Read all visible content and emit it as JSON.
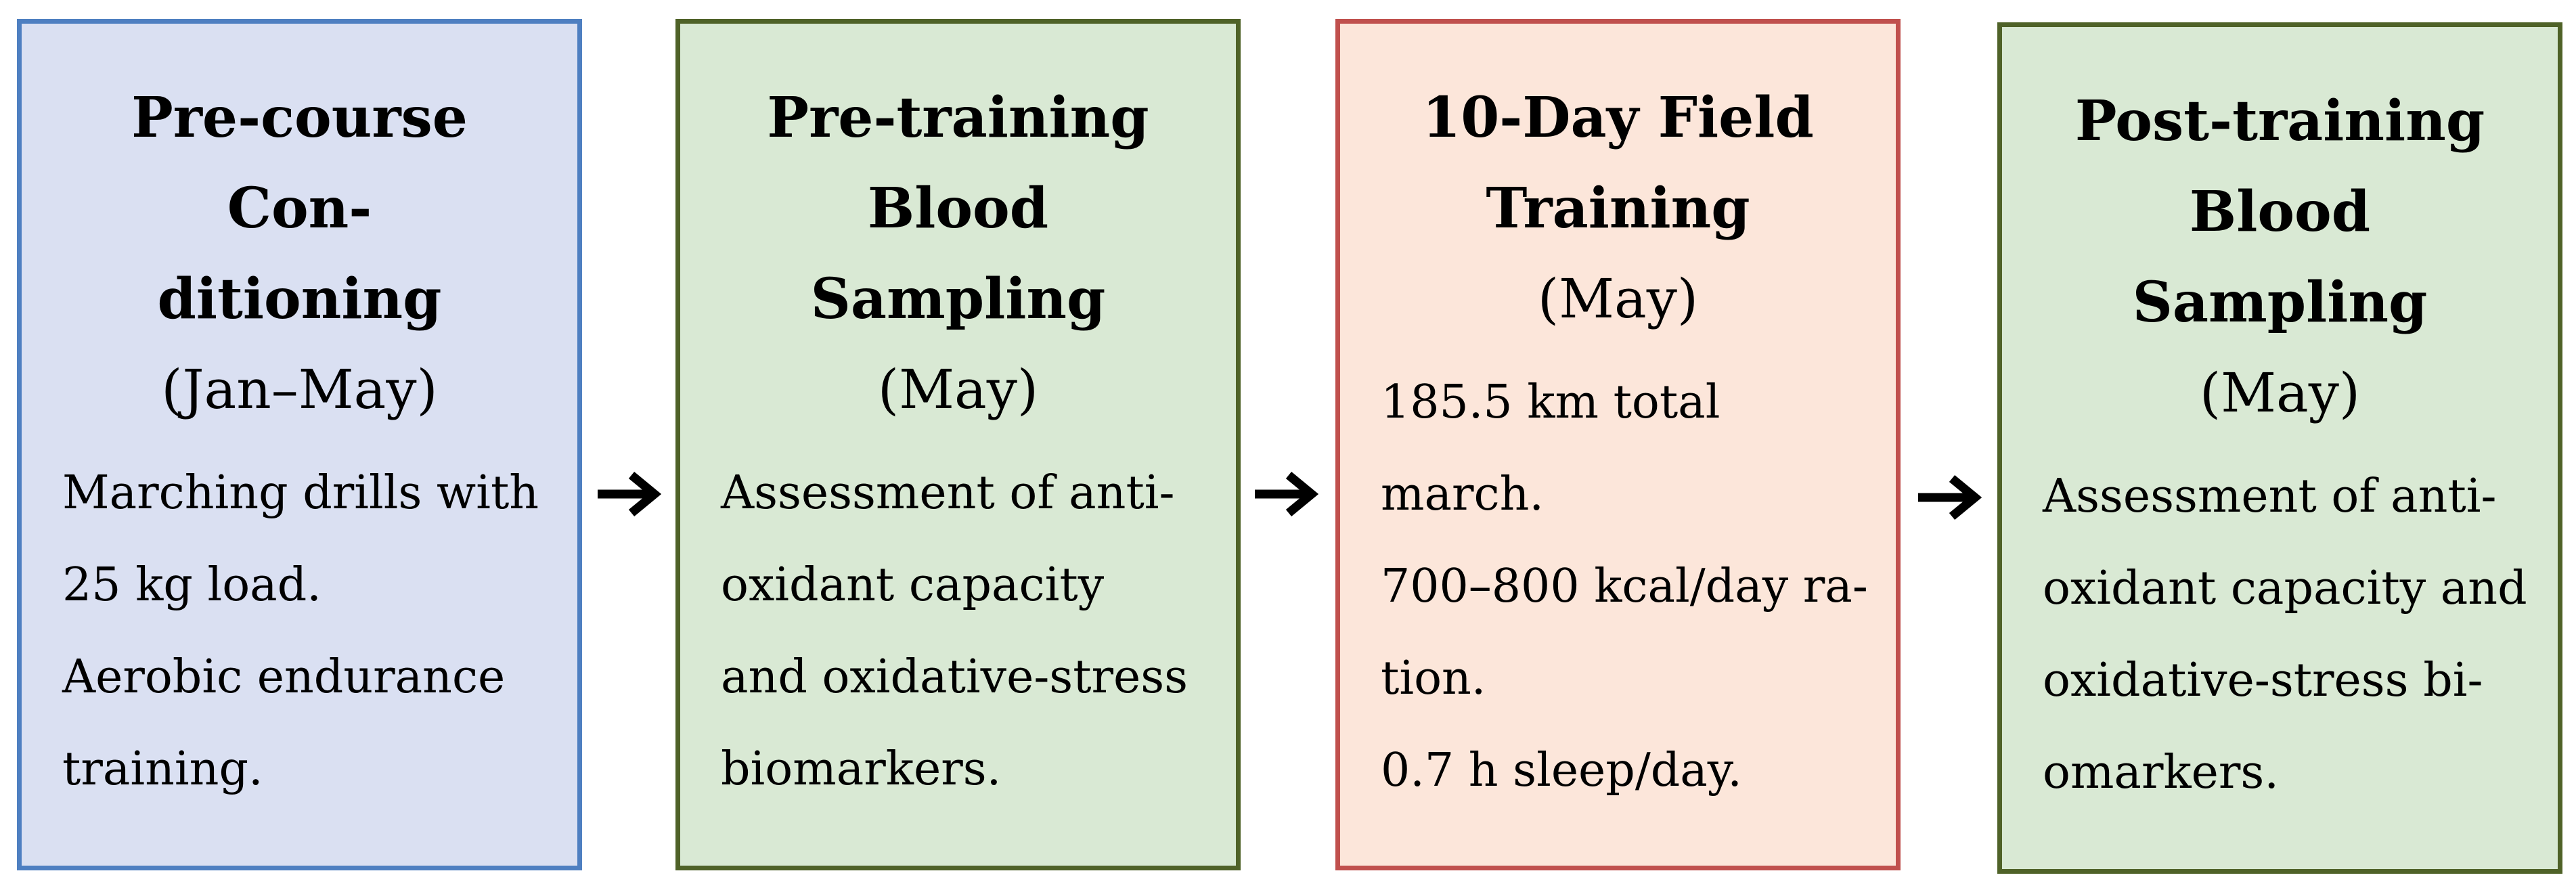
{
  "steps": [
    {
      "title": "Pre-course Con-\nditioning",
      "period": "(Jan–May)",
      "lines": [
        "Marching drills with",
        "25 kg load.",
        "Aerobic endurance",
        "training."
      ],
      "fill": "#dae0f2",
      "border": "#4e7fc1"
    },
    {
      "title": "Pre-training\nBlood Sampling",
      "period": "(May)",
      "lines": [
        "Assessment of anti-",
        "oxidant capacity",
        "and oxidative-stress",
        "biomarkers."
      ],
      "fill": "#d9e9d4",
      "border": "#4f6228"
    },
    {
      "title": "10-Day Field\nTraining",
      "period": "(May)",
      "lines": [
        "185.5 km total",
        "march.",
        "700–800 kcal/day ra-",
        "tion.",
        "0.7 h sleep/day."
      ],
      "fill": "#fce6da",
      "border": "#c0504d"
    },
    {
      "title": "Post-training\nBlood Sampling",
      "period": "(May)",
      "lines": [
        "Assessment of anti-",
        "oxidant capacity and",
        "oxidative-stress bi-",
        "omarkers."
      ],
      "fill": "#d9e9d4",
      "border": "#4f6228"
    }
  ],
  "arrow_color": "#000000"
}
